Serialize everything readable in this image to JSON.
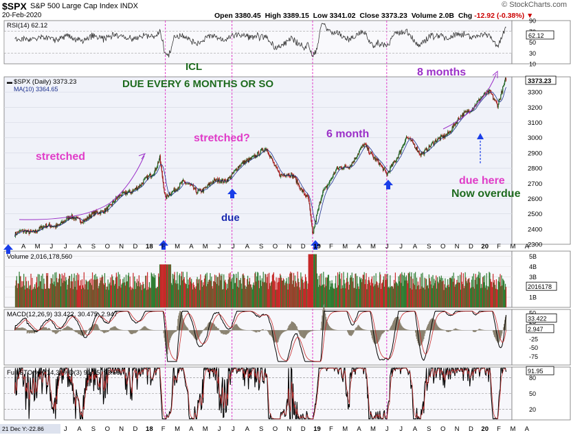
{
  "header": {
    "symbol": "$SPX",
    "name": "S&P 500 Large Cap Index",
    "exchange": "INDX",
    "date": "20-Feb-2020",
    "watermark": "© StockCharts.com",
    "open_label": "Open",
    "open": "3380.45",
    "high_label": "High",
    "high": "3389.15",
    "low_label": "Low",
    "low": "3341.02",
    "close_label": "Close",
    "close": "3373.23",
    "volume_label": "Volume",
    "volume": "2.0B",
    "chg_label": "Chg",
    "chg": "-12.92 (-0.38%)",
    "chg_arrow": "▼"
  },
  "colors": {
    "up": "#2e7d32",
    "down": "#c62828",
    "annot_pink": "#e03cc8",
    "annot_purple": "#9b30c8",
    "annot_green": "#1e6b1e",
    "arrow_blue": "#1a3ee8",
    "price_line": "#000000",
    "ma_line": "#1a2e8c",
    "macd_hist": "#8a8270",
    "panel_bg": "#f7f7fb",
    "price_bg": "#f0f2f9"
  },
  "chart_data": [
    {
      "type": "line",
      "title": "RSI(14) 62.12",
      "series": [
        {
          "name": "RSI(14)",
          "last": 62.12
        }
      ],
      "ylim": [
        10,
        90
      ],
      "yticks": [
        "90",
        "70",
        "50",
        "30",
        "10"
      ],
      "last_label": "62.12"
    },
    {
      "type": "candlestick",
      "title": "$SPX (Daily) 3373.23",
      "series": [
        {
          "name": "$SPX (Daily)",
          "last": 3373.23,
          "x": [
            "2017-03",
            "2017-04",
            "2017-05",
            "2017-06",
            "2017-07",
            "2017-08",
            "2017-09",
            "2017-10",
            "2017-11",
            "2017-12",
            "2018-01",
            "2018-01-26",
            "2018-02-08",
            "2018-03",
            "2018-04",
            "2018-05",
            "2018-06",
            "2018-07",
            "2018-08",
            "2018-09",
            "2018-10",
            "2018-11",
            "2018-12",
            "2018-12-24",
            "2019-01",
            "2019-02",
            "2019-03",
            "2019-04",
            "2019-05",
            "2019-06-03",
            "2019-07",
            "2019-08",
            "2019-09",
            "2019-10",
            "2019-11",
            "2019-12",
            "2020-01",
            "2020-01-31",
            "2020-02-19"
          ],
          "values": [
            2365,
            2385,
            2405,
            2430,
            2470,
            2465,
            2505,
            2570,
            2645,
            2680,
            2790,
            2872,
            2590,
            2720,
            2640,
            2700,
            2720,
            2800,
            2880,
            2920,
            2760,
            2740,
            2600,
            2351,
            2650,
            2780,
            2830,
            2945,
            2850,
            2744,
            3000,
            2900,
            2960,
            3040,
            3140,
            3230,
            3300,
            3225,
            3386
          ]
        },
        {
          "name": "MA(10)",
          "last": 3364.65
        }
      ],
      "ylim": [
        2300,
        3400
      ],
      "yticks": [
        "3300",
        "3200",
        "3100",
        "3000",
        "2900",
        "2800",
        "2700",
        "2600",
        "2500",
        "2400",
        "2300"
      ],
      "last_label": "3373.23",
      "xticks": [
        "A",
        "M",
        "J",
        "J",
        "A",
        "S",
        "O",
        "N",
        "D",
        "18",
        "F",
        "M",
        "A",
        "M",
        "J",
        "J",
        "A",
        "S",
        "O",
        "N",
        "D",
        "19",
        "F",
        "M",
        "A",
        "M",
        "J",
        "J",
        "A",
        "S",
        "O",
        "N",
        "D",
        "20",
        "F",
        "M",
        "A"
      ],
      "annotations": [
        "ICL",
        "DUE EVERY 6 MONTHS OR SO",
        "stretched",
        "stretched?",
        "6 month",
        "8 months",
        "due",
        "due here",
        "Now overdue"
      ]
    },
    {
      "type": "bar",
      "title": "Volume 2,016,178,560",
      "last_label": "2016178",
      "yticks": [
        "5B",
        "4B",
        "3B",
        "2B",
        "1B"
      ],
      "ylim": [
        0,
        5.5
      ]
    },
    {
      "type": "line",
      "title": "MACD(12,26,9) 33.422, 30.475, 2.947",
      "series": [
        {
          "name": "MACD",
          "last": 33.422
        },
        {
          "name": "Signal",
          "last": 30.475
        },
        {
          "name": "Histogram",
          "last": 2.947
        }
      ],
      "ylim": [
        -100,
        60
      ],
      "yticks": [
        "50",
        "25",
        "0",
        "-25",
        "-50",
        "-75"
      ],
      "last_labels": [
        "33.422",
        "2.947"
      ]
    },
    {
      "type": "line",
      "title": "Full STO %K(14,3) %D(3) 91.95, 93.56",
      "series": [
        {
          "name": "%K",
          "last": 91.95
        },
        {
          "name": "%D",
          "last": 93.56
        }
      ],
      "ylim": [
        0,
        100
      ],
      "yticks": [
        "80",
        "50",
        "20"
      ],
      "last_label": "91.95",
      "xticks": [
        "A",
        "M",
        "J",
        "J",
        "A",
        "S",
        "O",
        "N",
        "D",
        "18",
        "F",
        "M",
        "A",
        "M",
        "J",
        "J",
        "A",
        "S",
        "O",
        "N",
        "D",
        "19",
        "F",
        "M",
        "A",
        "M",
        "J",
        "J",
        "A",
        "S",
        "O",
        "N",
        "D",
        "20",
        "F",
        "M",
        "A"
      ],
      "footer": "21 Dec Y:-22.86"
    }
  ]
}
